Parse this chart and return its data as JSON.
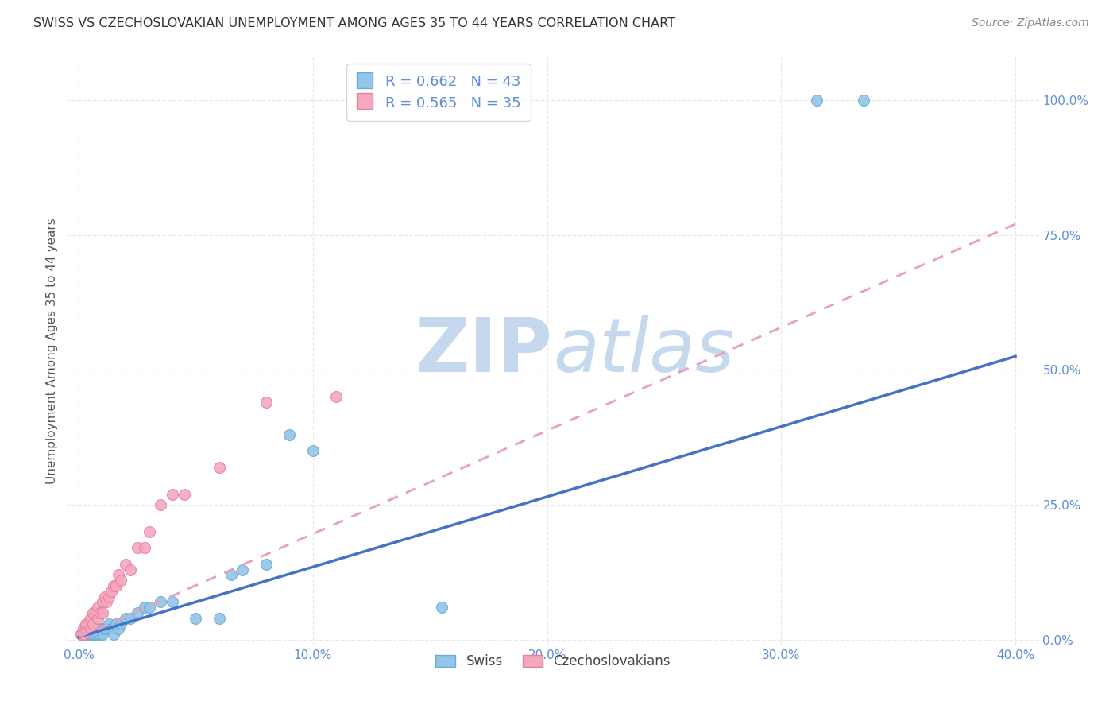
{
  "title": "SWISS VS CZECHOSLOVAKIAN UNEMPLOYMENT AMONG AGES 35 TO 44 YEARS CORRELATION CHART",
  "source": "Source: ZipAtlas.com",
  "xlabel_ticks": [
    "0.0%",
    "10.0%",
    "20.0%",
    "30.0%",
    "40.0%"
  ],
  "xlabel_tick_vals": [
    0.0,
    0.1,
    0.2,
    0.3,
    0.4
  ],
  "ylabel_label": "Unemployment Among Ages 35 to 44 years",
  "ylabel_ticks": [
    "0.0%",
    "25.0%",
    "50.0%",
    "75.0%",
    "100.0%"
  ],
  "ylabel_tick_vals": [
    0.0,
    0.25,
    0.5,
    0.75,
    1.0
  ],
  "xlim": [
    -0.005,
    0.41
  ],
  "ylim": [
    -0.01,
    1.08
  ],
  "swiss_color": "#92C5E8",
  "czech_color": "#F4A8BE",
  "swiss_edge_color": "#6AAAD4",
  "czech_edge_color": "#E87FA0",
  "swiss_R": 0.662,
  "swiss_N": 43,
  "czech_R": 0.565,
  "czech_N": 35,
  "swiss_scatter_x": [
    0.001,
    0.002,
    0.002,
    0.003,
    0.003,
    0.004,
    0.004,
    0.005,
    0.005,
    0.006,
    0.006,
    0.007,
    0.007,
    0.008,
    0.008,
    0.009,
    0.01,
    0.01,
    0.011,
    0.012,
    0.013,
    0.014,
    0.015,
    0.016,
    0.017,
    0.018,
    0.02,
    0.022,
    0.025,
    0.028,
    0.03,
    0.035,
    0.04,
    0.05,
    0.06,
    0.065,
    0.07,
    0.08,
    0.09,
    0.1,
    0.155,
    0.315,
    0.335
  ],
  "swiss_scatter_y": [
    0.01,
    0.02,
    0.01,
    0.02,
    0.01,
    0.02,
    0.01,
    0.02,
    0.01,
    0.02,
    0.01,
    0.02,
    0.01,
    0.02,
    0.01,
    0.01,
    0.02,
    0.01,
    0.02,
    0.02,
    0.03,
    0.02,
    0.01,
    0.03,
    0.02,
    0.03,
    0.04,
    0.04,
    0.05,
    0.06,
    0.06,
    0.07,
    0.07,
    0.04,
    0.04,
    0.12,
    0.13,
    0.14,
    0.38,
    0.35,
    0.06,
    1.0,
    1.0
  ],
  "czech_scatter_x": [
    0.001,
    0.002,
    0.002,
    0.003,
    0.003,
    0.004,
    0.005,
    0.005,
    0.006,
    0.006,
    0.007,
    0.008,
    0.008,
    0.009,
    0.01,
    0.01,
    0.011,
    0.012,
    0.013,
    0.014,
    0.015,
    0.016,
    0.017,
    0.018,
    0.02,
    0.022,
    0.025,
    0.028,
    0.03,
    0.035,
    0.04,
    0.045,
    0.06,
    0.08,
    0.11
  ],
  "czech_scatter_y": [
    0.01,
    0.02,
    0.01,
    0.02,
    0.03,
    0.03,
    0.04,
    0.02,
    0.05,
    0.03,
    0.05,
    0.04,
    0.06,
    0.05,
    0.07,
    0.05,
    0.08,
    0.07,
    0.08,
    0.09,
    0.1,
    0.1,
    0.12,
    0.11,
    0.14,
    0.13,
    0.17,
    0.17,
    0.2,
    0.25,
    0.27,
    0.27,
    0.32,
    0.44,
    0.45
  ],
  "swiss_trend_x": [
    0.0,
    0.4
  ],
  "swiss_trend_y": [
    0.005,
    0.525
  ],
  "czech_trend_x": [
    0.0,
    0.4
  ],
  "czech_trend_y": [
    0.005,
    0.77
  ],
  "watermark_zip": "ZIP",
  "watermark_atlas": "atlas",
  "watermark_color": "#C5D8ED",
  "grid_color": "#E8E8E8",
  "grid_linestyle": "--",
  "legend_swiss_label": "Swiss",
  "legend_czech_label": "Czechoslovakians",
  "tick_color": "#5B8DD9",
  "ylabel_color": "#555555",
  "title_color": "#333333",
  "source_color": "#888888"
}
